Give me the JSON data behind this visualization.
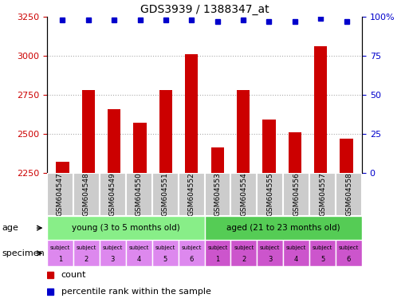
{
  "title": "GDS3939 / 1388347_at",
  "samples": [
    "GSM604547",
    "GSM604548",
    "GSM604549",
    "GSM604550",
    "GSM604551",
    "GSM604552",
    "GSM604553",
    "GSM604554",
    "GSM604555",
    "GSM604556",
    "GSM604557",
    "GSM604558"
  ],
  "counts": [
    2320,
    2780,
    2660,
    2570,
    2780,
    3010,
    2415,
    2780,
    2590,
    2510,
    3060,
    2470
  ],
  "percentile_ranks": [
    98,
    98,
    98,
    98,
    98,
    98,
    97,
    98,
    97,
    97,
    99,
    97
  ],
  "ylim_left": [
    2250,
    3250
  ],
  "ylim_right": [
    0,
    100
  ],
  "yticks_left": [
    2250,
    2500,
    2750,
    3000,
    3250
  ],
  "yticks_right": [
    0,
    25,
    50,
    75,
    100
  ],
  "bar_color": "#cc0000",
  "dot_color": "#0000cc",
  "young_color": "#88ee88",
  "aged_color": "#55cc55",
  "specimen_young_color": "#dd88ee",
  "specimen_aged_color": "#cc55cc",
  "age_groups": [
    {
      "label": "young (3 to 5 months old)",
      "start": 0,
      "end": 6,
      "is_young": true
    },
    {
      "label": "aged (21 to 23 months old)",
      "start": 6,
      "end": 12,
      "is_young": false
    }
  ],
  "subj_nums": [
    "1",
    "2",
    "3",
    "4",
    "5",
    "6",
    "1",
    "2",
    "3",
    "4",
    "5",
    "6"
  ],
  "grid_color": "#aaaaaa",
  "left_tick_color": "#cc0000",
  "right_tick_color": "#0000cc",
  "sample_bg_color": "#cccccc",
  "sample_bg_line_color": "#ffffff",
  "legend_square_size": 6,
  "bar_width": 0.5
}
